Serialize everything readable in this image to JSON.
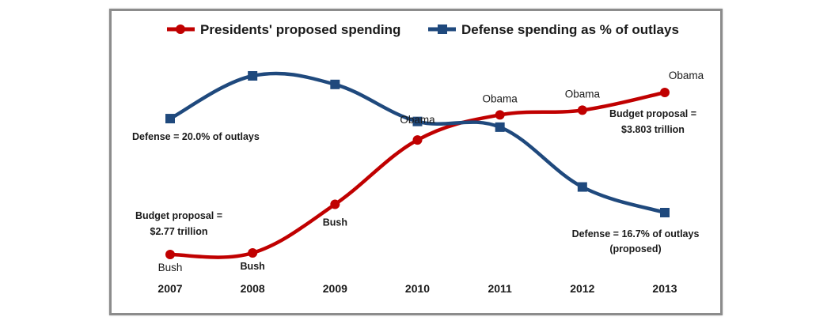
{
  "colors": {
    "proposed": "#c00000",
    "defense": "#1f497d",
    "frame": "#8c8c8c",
    "text": "#1a1a1a"
  },
  "chart_data": {
    "type": "line",
    "categories": [
      "2007",
      "2008",
      "2009",
      "2010",
      "2011",
      "2012",
      "2013"
    ],
    "legend_position": "top",
    "grid": false,
    "series": [
      {
        "name": "Presidents' proposed spending",
        "marker": "circle",
        "color": "#c00000",
        "values": [
          2.77,
          2.78,
          3.09,
          3.5,
          3.66,
          3.69,
          3.803
        ],
        "point_labels": [
          "Bush",
          "Bush",
          "Bush",
          "Obama",
          "Obama",
          "Obama",
          "Obama"
        ]
      },
      {
        "name": "Defense spending as % of outlays",
        "marker": "square",
        "color": "#1f497d",
        "values": [
          20.0,
          21.5,
          21.2,
          19.9,
          19.7,
          17.6,
          16.7
        ]
      }
    ],
    "annotations": {
      "defense_start": "Defense = 20.0% of outlays",
      "proposal_start_1": "Budget proposal =",
      "proposal_start_2": "$2.77 trillion",
      "proposal_end_1": "Budget proposal =",
      "proposal_end_2": "$3.803 trillion",
      "defense_end_1": "Defense = 16.7% of outlays",
      "defense_end_2": "(proposed)"
    }
  }
}
